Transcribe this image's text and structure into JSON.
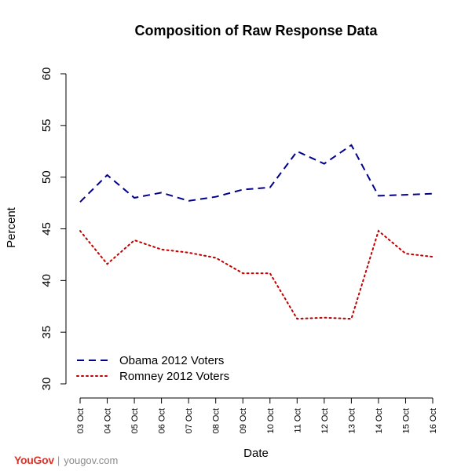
{
  "chart_data": {
    "type": "line",
    "title": "Composition of Raw Response Data",
    "xlabel": "Date",
    "ylabel": "Percent",
    "ylim": [
      30,
      60
    ],
    "yticks": [
      30,
      35,
      40,
      45,
      50,
      55,
      60
    ],
    "categories": [
      "03 Oct",
      "04 Oct",
      "05 Oct",
      "06 Oct",
      "07 Oct",
      "08 Oct",
      "09 Oct",
      "10 Oct",
      "11 Oct",
      "12 Oct",
      "13 Oct",
      "14 Oct",
      "15 Oct",
      "16 Oct"
    ],
    "grid": false,
    "legend_position": "bottom-left",
    "series": [
      {
        "name": "Obama 2012 Voters",
        "color": "#00008b",
        "style": "dashed",
        "values": [
          47.6,
          50.2,
          48.0,
          48.5,
          47.7,
          48.1,
          48.8,
          49.0,
          52.5,
          51.3,
          53.1,
          48.2,
          48.3,
          48.4
        ]
      },
      {
        "name": "Romney 2012 Voters",
        "color": "#c00000",
        "style": "dotted",
        "values": [
          44.8,
          41.6,
          43.9,
          43.0,
          42.7,
          42.2,
          40.7,
          40.7,
          36.3,
          36.4,
          36.3,
          44.8,
          42.6,
          42.3
        ]
      }
    ]
  },
  "footer": {
    "logo": "YouGov",
    "separator": "|",
    "site": "yougov.com"
  }
}
